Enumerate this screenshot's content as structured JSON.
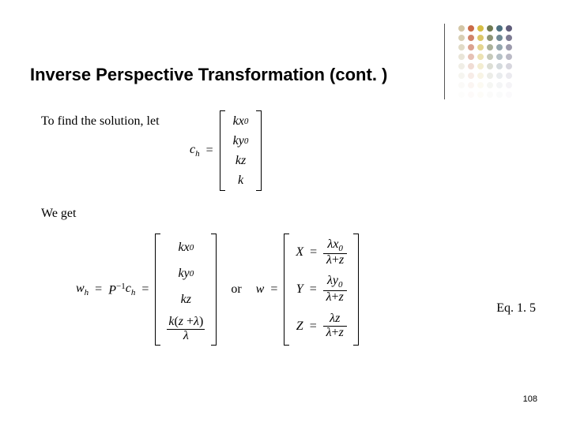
{
  "title": "Inverse Perspective Transformation (cont. )",
  "texts": {
    "line1": "To find the solution, let",
    "line2": "We get",
    "eqlabel": "Eq. 1. 5",
    "or": "or"
  },
  "symbols": {
    "ch": "c",
    "ch_sub": "h",
    "wh": "w",
    "wh_sub": "h",
    "w": "w",
    "P": "P",
    "P_sup": "−1",
    "eq": "=",
    "k": "k",
    "x0": "x",
    "x0_sub": "0",
    "y0": "y",
    "y0_sub": "0",
    "z": "z",
    "lambda": "λ",
    "X": "X",
    "Y": "Y",
    "Z": "Z",
    "plus": "+",
    "lparen": "(",
    "rparen": ")"
  },
  "page_number": "108",
  "dot_colors": [
    [
      "#d3c6a6",
      "#c96a47",
      "#d6be43",
      "#6f7a52",
      "#4c6f7f",
      "#5f5c7a"
    ],
    [
      "#d8cfb4",
      "#d0846a",
      "#dcc768",
      "#8d9576",
      "#6f8994",
      "#7d7b93"
    ],
    [
      "#e1dbc7",
      "#dba28f",
      "#e4d58f",
      "#aab19a",
      "#94a6ae",
      "#9c9aac"
    ],
    [
      "#e9e5d8",
      "#e6c1b4",
      "#ece2b2",
      "#c5c9ba",
      "#b6c1c7",
      "#bbbac6"
    ],
    [
      "#f0eee6",
      "#f0dcd4",
      "#f3edd1",
      "#dcded5",
      "#d4dadd",
      "#d7d6de"
    ],
    [
      "#f6f5f0",
      "#f7ece7",
      "#f8f4e5",
      "#ecede8",
      "#e9ecee",
      "#ebeaef"
    ],
    [
      "#fbfaf8",
      "#fbf5f2",
      "#fcfaf2",
      "#f5f6f3",
      "#f4f5f6",
      "#f5f4f7"
    ],
    [
      "#fdfdfc",
      "#fdfaf9",
      "#fdfcf8",
      "#fbfbfa",
      "#fafbfb",
      "#fbfafc"
    ]
  ],
  "styles": {
    "background": "#ffffff",
    "title_fontsize": 22,
    "body_fontsize": 16,
    "text_color": "#000000"
  }
}
